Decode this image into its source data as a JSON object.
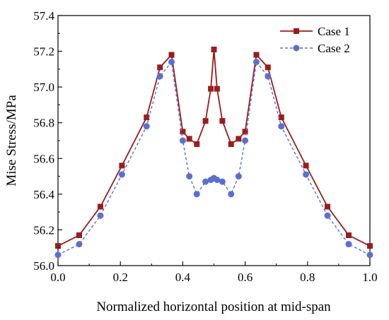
{
  "chart_data": {
    "type": "line",
    "title": "",
    "xlabel": "Normalized horizontal position at mid-span",
    "ylabel": "Mise Stress/MPa",
    "xlim": [
      0.0,
      1.0
    ],
    "ylim": [
      56.0,
      57.4
    ],
    "xticks": [
      "0.0",
      "0.2",
      "0.4",
      "0.6",
      "0.8",
      "1.0"
    ],
    "yticks": [
      "56.0",
      "56.2",
      "56.4",
      "56.6",
      "56.8",
      "57.0",
      "57.2",
      "57.4"
    ],
    "grid": false,
    "legend_position": "top-right",
    "series": [
      {
        "name": "Case 1",
        "color": "#9b1c1c",
        "line_style": "solid",
        "marker": "square",
        "x": [
          0.0,
          0.068,
          0.136,
          0.205,
          0.284,
          0.327,
          0.364,
          0.4,
          0.421,
          0.445,
          0.473,
          0.49,
          0.5,
          0.51,
          0.527,
          0.555,
          0.579,
          0.6,
          0.636,
          0.673,
          0.716,
          0.795,
          0.864,
          0.932,
          1.0
        ],
        "y": [
          56.11,
          56.17,
          56.33,
          56.56,
          56.83,
          57.11,
          57.18,
          56.75,
          56.71,
          56.68,
          56.81,
          56.99,
          57.21,
          56.99,
          56.81,
          56.68,
          56.71,
          56.75,
          57.18,
          57.11,
          56.83,
          56.56,
          56.33,
          56.17,
          56.11
        ]
      },
      {
        "name": "Case 2",
        "color": "#5b6fcf",
        "line_style": "dashed",
        "marker": "circle",
        "x": [
          0.0,
          0.068,
          0.136,
          0.205,
          0.284,
          0.327,
          0.364,
          0.4,
          0.421,
          0.445,
          0.473,
          0.49,
          0.5,
          0.51,
          0.527,
          0.555,
          0.579,
          0.6,
          0.636,
          0.673,
          0.716,
          0.795,
          0.864,
          0.932,
          1.0
        ],
        "y": [
          56.06,
          56.12,
          56.28,
          56.51,
          56.78,
          57.06,
          57.14,
          56.7,
          56.5,
          56.4,
          56.47,
          56.48,
          56.49,
          56.48,
          56.47,
          56.4,
          56.5,
          56.7,
          57.14,
          57.06,
          56.78,
          56.51,
          56.28,
          56.12,
          56.06
        ]
      }
    ]
  }
}
